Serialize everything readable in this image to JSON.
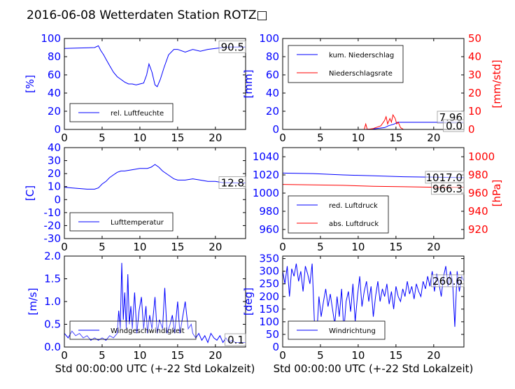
{
  "title": "2016-06-08 Wetterdaten Station ROTZ□",
  "colors": {
    "blue": "#0000ff",
    "red": "#ff0000",
    "lightblue": "#8080ff",
    "axis": "#000000"
  },
  "chart_data": [
    {
      "id": "humidity",
      "type": "line",
      "ylabel": "[%]",
      "ylim": [
        0,
        100
      ],
      "yticks": [
        0,
        20,
        40,
        60,
        80,
        100
      ],
      "xlim": [
        0,
        24
      ],
      "xticks": [
        0,
        5,
        10,
        15,
        20
      ],
      "series": [
        {
          "name": "rel. Luftfeuchte",
          "color": "#0000ff",
          "x": [
            0,
            2,
            4,
            4.5,
            4.8,
            5.2,
            5.6,
            6,
            6.5,
            7,
            7.5,
            8,
            8.5,
            9,
            9.5,
            10,
            10.5,
            10.9,
            11.2,
            11.6,
            12,
            12.3,
            12.7,
            13.2,
            13.8,
            14.5,
            15,
            16,
            17,
            18,
            19,
            20,
            21,
            22,
            23,
            24
          ],
          "y": [
            89,
            89.5,
            90,
            92,
            87,
            82,
            76,
            70,
            63,
            58,
            55,
            52,
            50,
            50,
            49,
            50,
            51,
            60,
            72,
            63,
            49,
            47,
            55,
            68,
            82,
            88,
            88,
            85,
            88,
            86,
            88,
            89,
            90,
            90.5,
            90.5,
            90.5
          ]
        }
      ],
      "value_label": "90.5"
    },
    {
      "id": "precip",
      "type": "line",
      "ylabel": "[mm]",
      "ylim": [
        0,
        100
      ],
      "yticks": [
        0,
        20,
        40,
        60,
        80,
        100
      ],
      "y2label": "[mm/std]",
      "y2lim": [
        0,
        50
      ],
      "y2ticks": [
        0,
        10,
        20,
        30,
        40,
        50
      ],
      "xlim": [
        0,
        24
      ],
      "xticks": [
        0,
        5,
        10,
        15,
        20
      ],
      "series": [
        {
          "name": "kum. Niederschlag",
          "color": "#0000ff",
          "axis": "left",
          "x": [
            0,
            11,
            12,
            13.5,
            14,
            14.8,
            15.2,
            24
          ],
          "y": [
            0,
            0,
            0.5,
            2,
            4,
            6,
            7.96,
            7.96
          ]
        },
        {
          "name": "Niederschlagsrate",
          "color": "#ff0000",
          "axis": "right",
          "x": [
            0,
            10.8,
            11,
            11.2,
            12,
            13,
            13.5,
            13.7,
            13.9,
            14.2,
            14.4,
            14.6,
            14.9,
            15.1,
            15.3,
            15.6,
            16,
            24
          ],
          "y": [
            0,
            0,
            3,
            0,
            0.5,
            2,
            5,
            7,
            3,
            6,
            4,
            8,
            6,
            3,
            4,
            1,
            0,
            0
          ]
        }
      ],
      "value_label": "7.96",
      "value_label2": "0.0"
    },
    {
      "id": "temperature",
      "type": "line",
      "ylabel": "[C]",
      "ylim": [
        -30,
        40
      ],
      "yticks": [
        -30,
        -20,
        -10,
        0,
        10,
        20,
        30,
        40
      ],
      "xlim": [
        0,
        24
      ],
      "xticks": [
        0,
        5,
        10,
        15,
        20
      ],
      "series": [
        {
          "name": "Lufttemperatur",
          "color": "#0000ff",
          "x": [
            0,
            1,
            2,
            3,
            4,
            4.5,
            5,
            5.5,
            6,
            6.5,
            7,
            7.5,
            8,
            9,
            10,
            11,
            11.5,
            12,
            12.5,
            13,
            13.5,
            14,
            14.5,
            15,
            16,
            17,
            18,
            19,
            20,
            21,
            22,
            23,
            24
          ],
          "y": [
            9.5,
            9,
            8.5,
            8,
            8,
            9,
            12,
            14,
            17,
            19,
            21,
            22,
            22,
            23,
            24,
            24,
            25,
            27,
            25,
            22,
            20,
            18,
            16,
            15,
            15,
            16,
            15,
            14,
            14,
            13,
            13,
            12.8,
            12.8
          ]
        }
      ],
      "value_label": "12.8"
    },
    {
      "id": "pressure",
      "type": "line",
      "ylim": [
        950,
        1050
      ],
      "yticks": [
        960,
        980,
        1000,
        1020,
        1040
      ],
      "y2label": "[hPa]",
      "y2lim": [
        910,
        1010
      ],
      "y2ticks": [
        920,
        940,
        960,
        980,
        1000
      ],
      "xlim": [
        0,
        24
      ],
      "xticks": [
        0,
        5,
        10,
        15,
        20
      ],
      "series": [
        {
          "name": "red. Luftdruck",
          "color": "#0000ff",
          "axis": "left",
          "x": [
            0,
            4,
            8,
            12,
            16,
            20,
            24
          ],
          "y": [
            1022,
            1021.5,
            1020,
            1019,
            1018,
            1017.5,
            1017.0
          ]
        },
        {
          "name": "abs. Luftdruck",
          "color": "#ff0000",
          "axis": "right",
          "x": [
            0,
            4,
            8,
            12,
            16,
            20,
            24
          ],
          "y": [
            969.5,
            969,
            968.5,
            967.5,
            967,
            966.5,
            966.3
          ]
        }
      ],
      "value_label": "1017.0",
      "value_label2": "966.3"
    },
    {
      "id": "windspeed",
      "type": "line",
      "ylabel": "[m/s]",
      "ylim": [
        0,
        2.0
      ],
      "yticks": [
        0.0,
        0.5,
        1.0,
        1.5,
        2.0
      ],
      "xlim": [
        0,
        24
      ],
      "xticks": [
        0,
        5,
        10,
        15,
        20
      ],
      "xlabel": "Std 00:00:00 UTC (+-22 Std Lokalzeit)",
      "series": [
        {
          "name": "Windgeschwindigkeit",
          "color": "#0000ff",
          "x": [
            0,
            0.5,
            1,
            1.5,
            2,
            2.5,
            3,
            3.5,
            4,
            4.5,
            5,
            5.5,
            6,
            6.5,
            7,
            7.2,
            7.4,
            7.6,
            7.8,
            8,
            8.2,
            8.4,
            8.6,
            8.8,
            9,
            9.3,
            9.6,
            9.9,
            10.2,
            10.5,
            10.8,
            11,
            11.3,
            11.6,
            12,
            12.3,
            12.6,
            13,
            13.3,
            13.6,
            14,
            14.3,
            14.6,
            15,
            15.3,
            15.6,
            16,
            16.4,
            16.8,
            17,
            17.4,
            17.8,
            18.2,
            18.6,
            19,
            19.4,
            19.8,
            20.2,
            20.6,
            21,
            21.4,
            21.8,
            22.2,
            22.6,
            23,
            23.5,
            24
          ],
          "y": [
            0.3,
            0.2,
            0.35,
            0.25,
            0.3,
            0.2,
            0.25,
            0.15,
            0.2,
            0.15,
            0.2,
            0.15,
            0.25,
            0.2,
            0.3,
            0.8,
            0.4,
            1.85,
            0.6,
            1.2,
            0.4,
            1.6,
            0.5,
            0.9,
            0.4,
            1.2,
            0.3,
            0.8,
            1.1,
            0.4,
            0.9,
            0.3,
            0.7,
            0.4,
            1.1,
            0.3,
            0.6,
            0.4,
            1.3,
            0.3,
            0.5,
            0.7,
            0.3,
            1.0,
            0.3,
            0.6,
            1.0,
            0.4,
            0.5,
            0.3,
            0.2,
            0.3,
            0.15,
            0.25,
            0.1,
            0.3,
            0.2,
            0.15,
            0.25,
            0.1,
            0.2,
            0.1,
            0.15,
            0.1,
            0.1,
            0.1,
            0.1
          ]
        }
      ],
      "value_label": "0.1"
    },
    {
      "id": "winddir",
      "type": "line",
      "ylabel": "[deg]",
      "ylim": [
        0,
        360
      ],
      "yticks": [
        0,
        50,
        100,
        150,
        200,
        250,
        300,
        350
      ],
      "xlim": [
        0,
        24
      ],
      "xticks": [
        0,
        5,
        10,
        15,
        20
      ],
      "xlabel": "Std 00:00:00 UTC (+-22 Std Lokalzeit)",
      "series": [
        {
          "name": "Windrichtung",
          "color": "#0000ff",
          "x": [
            0,
            0.3,
            0.6,
            0.9,
            1.2,
            1.5,
            1.8,
            2.1,
            2.4,
            2.7,
            3,
            3.3,
            3.6,
            3.9,
            4.2,
            4.5,
            4.8,
            5.1,
            5.4,
            5.7,
            6,
            6.3,
            6.6,
            6.9,
            7.2,
            7.5,
            7.8,
            8.1,
            8.4,
            8.7,
            9,
            9.3,
            9.6,
            9.9,
            10.2,
            10.5,
            10.8,
            11.1,
            11.4,
            11.7,
            12,
            12.3,
            12.6,
            12.9,
            13.2,
            13.5,
            13.8,
            14.1,
            14.4,
            14.7,
            15,
            15.3,
            15.6,
            15.9,
            16.2,
            16.5,
            16.8,
            17.1,
            17.4,
            17.7,
            18,
            18.3,
            18.6,
            18.9,
            19.2,
            19.5,
            19.8,
            20.1,
            20.4,
            20.7,
            21,
            21.3,
            21.6,
            21.9,
            22.2,
            22.5,
            22.8,
            23.1,
            23.4,
            23.7,
            24
          ],
          "y": [
            300,
            250,
            320,
            200,
            310,
            280,
            330,
            260,
            300,
            220,
            320,
            290,
            250,
            330,
            100,
            40,
            200,
            120,
            180,
            230,
            160,
            210,
            150,
            90,
            200,
            120,
            230,
            60,
            180,
            220,
            140,
            250,
            100,
            200,
            280,
            160,
            220,
            260,
            180,
            240,
            120,
            200,
            260,
            180,
            230,
            200,
            250,
            170,
            220,
            150,
            240,
            200,
            180,
            230,
            200,
            260,
            210,
            240,
            190,
            250,
            220,
            200,
            260,
            230,
            280,
            240,
            300,
            220,
            290,
            250,
            200,
            280,
            320,
            240,
            300,
            260,
            80,
            300,
            220,
            280,
            260.6
          ]
        }
      ],
      "value_label": "260.6"
    }
  ]
}
